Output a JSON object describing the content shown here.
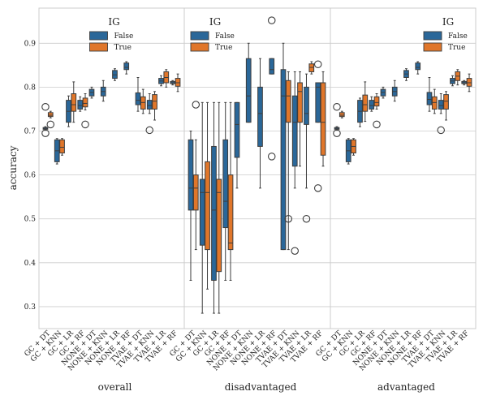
{
  "chart_data": {
    "type": "box",
    "ylabel": "accuracy",
    "ylim": [
      0.25,
      0.98
    ],
    "yticks": [
      0.3,
      0.4,
      0.5,
      0.6,
      0.7,
      0.8,
      0.9
    ],
    "grid": true,
    "categories": [
      "GC + DT",
      "GC + KNN",
      "GC + LR",
      "GC + RF",
      "NONE + DT",
      "NONE + KNN",
      "NONE + LR",
      "NONE + RF",
      "TVAE + DT",
      "TVAE + KNN",
      "TVAE + LR",
      "TVAE + RF"
    ],
    "legend": {
      "title": "IG",
      "entries": [
        {
          "label": "False",
          "color": "#2a6799"
        },
        {
          "label": "True",
          "color": "#e0762a"
        }
      ]
    },
    "panels": [
      {
        "label": "overall",
        "legend_position": "top-center",
        "boxes": [
          {
            "cat": 0,
            "hue": "False",
            "q1": 0.704,
            "med": 0.706,
            "q3": 0.708,
            "wlo": 0.702,
            "whi": 0.71,
            "out": [
              0.755,
              0.695
            ]
          },
          {
            "cat": 0,
            "hue": "True",
            "q1": 0.733,
            "med": 0.736,
            "q3": 0.742,
            "wlo": 0.73,
            "whi": 0.745,
            "out": [
              0.715
            ]
          },
          {
            "cat": 1,
            "hue": "False",
            "q1": 0.63,
            "med": 0.655,
            "q3": 0.68,
            "wlo": 0.625,
            "whi": 0.683,
            "out": []
          },
          {
            "cat": 1,
            "hue": "True",
            "q1": 0.65,
            "med": 0.663,
            "q3": 0.68,
            "wlo": 0.645,
            "whi": 0.683,
            "out": []
          },
          {
            "cat": 2,
            "hue": "False",
            "q1": 0.72,
            "med": 0.745,
            "q3": 0.77,
            "wlo": 0.71,
            "whi": 0.78,
            "out": []
          },
          {
            "cat": 2,
            "hue": "True",
            "q1": 0.745,
            "med": 0.76,
            "q3": 0.785,
            "wlo": 0.72,
            "whi": 0.812,
            "out": []
          },
          {
            "cat": 3,
            "hue": "False",
            "q1": 0.75,
            "med": 0.758,
            "q3": 0.77,
            "wlo": 0.745,
            "whi": 0.778,
            "out": []
          },
          {
            "cat": 3,
            "hue": "True",
            "q1": 0.755,
            "med": 0.763,
            "q3": 0.775,
            "wlo": 0.748,
            "whi": 0.785,
            "out": [
              0.715
            ]
          },
          {
            "cat": 4,
            "hue": "False",
            "q1": 0.78,
            "med": 0.788,
            "q3": 0.795,
            "wlo": 0.775,
            "whi": 0.8,
            "out": []
          },
          {
            "cat": 5,
            "hue": "False",
            "q1": 0.78,
            "med": 0.79,
            "q3": 0.8,
            "wlo": 0.768,
            "whi": 0.815,
            "out": []
          },
          {
            "cat": 6,
            "hue": "False",
            "q1": 0.82,
            "med": 0.828,
            "q3": 0.838,
            "wlo": 0.815,
            "whi": 0.842,
            "out": []
          },
          {
            "cat": 7,
            "hue": "False",
            "q1": 0.84,
            "med": 0.845,
            "q3": 0.855,
            "wlo": 0.83,
            "whi": 0.858,
            "out": []
          },
          {
            "cat": 8,
            "hue": "False",
            "q1": 0.76,
            "med": 0.77,
            "q3": 0.787,
            "wlo": 0.745,
            "whi": 0.822,
            "out": []
          },
          {
            "cat": 8,
            "hue": "True",
            "q1": 0.75,
            "med": 0.765,
            "q3": 0.778,
            "wlo": 0.74,
            "whi": 0.795,
            "out": []
          },
          {
            "cat": 9,
            "hue": "False",
            "q1": 0.75,
            "med": 0.758,
            "q3": 0.77,
            "wlo": 0.74,
            "whi": 0.785,
            "out": [
              0.702
            ]
          },
          {
            "cat": 9,
            "hue": "True",
            "q1": 0.75,
            "med": 0.768,
            "q3": 0.783,
            "wlo": 0.725,
            "whi": 0.79,
            "out": []
          },
          {
            "cat": 10,
            "hue": "False",
            "q1": 0.808,
            "med": 0.814,
            "q3": 0.82,
            "wlo": 0.803,
            "whi": 0.826,
            "out": []
          },
          {
            "cat": 10,
            "hue": "True",
            "q1": 0.81,
            "med": 0.822,
            "q3": 0.835,
            "wlo": 0.8,
            "whi": 0.84,
            "out": []
          },
          {
            "cat": 11,
            "hue": "False",
            "q1": 0.808,
            "med": 0.81,
            "q3": 0.813,
            "wlo": 0.805,
            "whi": 0.815,
            "out": []
          },
          {
            "cat": 11,
            "hue": "True",
            "q1": 0.802,
            "med": 0.81,
            "q3": 0.82,
            "wlo": 0.79,
            "whi": 0.83,
            "out": []
          }
        ]
      },
      {
        "label": "disadvantaged",
        "legend_position": "top-left",
        "boxes": [
          {
            "cat": 0,
            "hue": "False",
            "q1": 0.52,
            "med": 0.57,
            "q3": 0.68,
            "wlo": 0.36,
            "whi": 0.7,
            "out": []
          },
          {
            "cat": 0,
            "hue": "True",
            "q1": 0.52,
            "med": 0.57,
            "q3": 0.6,
            "wlo": 0.43,
            "whi": 0.68,
            "out": [
              0.76
            ]
          },
          {
            "cat": 1,
            "hue": "False",
            "q1": 0.44,
            "med": 0.56,
            "q3": 0.59,
            "wlo": 0.285,
            "whi": 0.765,
            "out": []
          },
          {
            "cat": 1,
            "hue": "True",
            "q1": 0.43,
            "med": 0.56,
            "q3": 0.63,
            "wlo": 0.34,
            "whi": 0.765,
            "out": []
          },
          {
            "cat": 2,
            "hue": "False",
            "q1": 0.36,
            "med": 0.52,
            "q3": 0.665,
            "wlo": 0.285,
            "whi": 0.765,
            "out": []
          },
          {
            "cat": 2,
            "hue": "True",
            "q1": 0.38,
            "med": 0.56,
            "q3": 0.59,
            "wlo": 0.285,
            "whi": 0.765,
            "out": []
          },
          {
            "cat": 3,
            "hue": "False",
            "q1": 0.48,
            "med": 0.54,
            "q3": 0.68,
            "wlo": 0.36,
            "whi": 0.765,
            "out": []
          },
          {
            "cat": 3,
            "hue": "True",
            "q1": 0.43,
            "med": 0.445,
            "q3": 0.6,
            "wlo": 0.36,
            "whi": 0.765,
            "out": []
          },
          {
            "cat": 4,
            "hue": "False",
            "q1": 0.64,
            "med": 0.715,
            "q3": 0.765,
            "wlo": 0.57,
            "whi": 0.765,
            "out": []
          },
          {
            "cat": 5,
            "hue": "False",
            "q1": 0.72,
            "med": 0.78,
            "q3": 0.865,
            "wlo": 0.72,
            "whi": 0.9,
            "out": []
          },
          {
            "cat": 6,
            "hue": "False",
            "q1": 0.665,
            "med": 0.74,
            "q3": 0.8,
            "wlo": 0.57,
            "whi": 0.865,
            "out": []
          },
          {
            "cat": 7,
            "hue": "False",
            "q1": 0.83,
            "med": 0.84,
            "q3": 0.865,
            "wlo": 0.83,
            "whi": 0.865,
            "out": [
              0.952,
              0.642
            ]
          },
          {
            "cat": 8,
            "hue": "False",
            "q1": 0.43,
            "med": 0.78,
            "q3": 0.84,
            "wlo": 0.43,
            "whi": 0.9,
            "out": []
          },
          {
            "cat": 8,
            "hue": "True",
            "q1": 0.72,
            "med": 0.78,
            "q3": 0.815,
            "wlo": 0.43,
            "whi": 0.835,
            "out": [
              0.5
            ]
          },
          {
            "cat": 9,
            "hue": "False",
            "q1": 0.62,
            "med": 0.72,
            "q3": 0.78,
            "wlo": 0.57,
            "whi": 0.835,
            "out": [
              0.427
            ]
          },
          {
            "cat": 9,
            "hue": "True",
            "q1": 0.72,
            "med": 0.79,
            "q3": 0.81,
            "wlo": 0.62,
            "whi": 0.835,
            "out": []
          },
          {
            "cat": 10,
            "hue": "False",
            "q1": 0.715,
            "med": 0.74,
            "q3": 0.8,
            "wlo": 0.57,
            "whi": 0.83,
            "out": [
              0.5
            ]
          },
          {
            "cat": 10,
            "hue": "True",
            "q1": 0.835,
            "med": 0.845,
            "q3": 0.853,
            "wlo": 0.83,
            "whi": 0.858,
            "out": []
          },
          {
            "cat": 11,
            "hue": "False",
            "q1": 0.72,
            "med": 0.8,
            "q3": 0.81,
            "wlo": 0.72,
            "whi": 0.81,
            "out": [
              0.852,
              0.57
            ]
          },
          {
            "cat": 11,
            "hue": "True",
            "q1": 0.645,
            "med": 0.72,
            "q3": 0.81,
            "wlo": 0.62,
            "whi": 0.835,
            "out": []
          }
        ]
      },
      {
        "label": "advantaged",
        "legend_position": "top-right",
        "boxes": [
          {
            "cat": 0,
            "hue": "False",
            "q1": 0.704,
            "med": 0.706,
            "q3": 0.708,
            "wlo": 0.702,
            "whi": 0.71,
            "out": [
              0.755,
              0.695
            ]
          },
          {
            "cat": 0,
            "hue": "True",
            "q1": 0.733,
            "med": 0.736,
            "q3": 0.742,
            "wlo": 0.73,
            "whi": 0.745,
            "out": []
          },
          {
            "cat": 1,
            "hue": "False",
            "q1": 0.63,
            "med": 0.655,
            "q3": 0.68,
            "wlo": 0.625,
            "whi": 0.683,
            "out": []
          },
          {
            "cat": 1,
            "hue": "True",
            "q1": 0.65,
            "med": 0.665,
            "q3": 0.68,
            "wlo": 0.645,
            "whi": 0.683,
            "out": []
          },
          {
            "cat": 2,
            "hue": "False",
            "q1": 0.72,
            "med": 0.745,
            "q3": 0.77,
            "wlo": 0.71,
            "whi": 0.775,
            "out": []
          },
          {
            "cat": 2,
            "hue": "True",
            "q1": 0.745,
            "med": 0.76,
            "q3": 0.782,
            "wlo": 0.722,
            "whi": 0.812,
            "out": []
          },
          {
            "cat": 3,
            "hue": "False",
            "q1": 0.75,
            "med": 0.758,
            "q3": 0.77,
            "wlo": 0.745,
            "whi": 0.778,
            "out": []
          },
          {
            "cat": 3,
            "hue": "True",
            "q1": 0.757,
            "med": 0.765,
            "q3": 0.778,
            "wlo": 0.75,
            "whi": 0.785,
            "out": [
              0.715
            ]
          },
          {
            "cat": 4,
            "hue": "False",
            "q1": 0.78,
            "med": 0.788,
            "q3": 0.795,
            "wlo": 0.775,
            "whi": 0.8,
            "out": []
          },
          {
            "cat": 5,
            "hue": "False",
            "q1": 0.78,
            "med": 0.79,
            "q3": 0.8,
            "wlo": 0.768,
            "whi": 0.815,
            "out": []
          },
          {
            "cat": 6,
            "hue": "False",
            "q1": 0.822,
            "med": 0.83,
            "q3": 0.838,
            "wlo": 0.815,
            "whi": 0.842,
            "out": []
          },
          {
            "cat": 7,
            "hue": "False",
            "q1": 0.84,
            "med": 0.845,
            "q3": 0.855,
            "wlo": 0.83,
            "whi": 0.858,
            "out": []
          },
          {
            "cat": 8,
            "hue": "False",
            "q1": 0.76,
            "med": 0.772,
            "q3": 0.788,
            "wlo": 0.745,
            "whi": 0.822,
            "out": []
          },
          {
            "cat": 8,
            "hue": "True",
            "q1": 0.75,
            "med": 0.765,
            "q3": 0.778,
            "wlo": 0.74,
            "whi": 0.795,
            "out": []
          },
          {
            "cat": 9,
            "hue": "False",
            "q1": 0.75,
            "med": 0.758,
            "q3": 0.77,
            "wlo": 0.74,
            "whi": 0.785,
            "out": [
              0.702
            ]
          },
          {
            "cat": 9,
            "hue": "True",
            "q1": 0.75,
            "med": 0.768,
            "q3": 0.783,
            "wlo": 0.725,
            "whi": 0.79,
            "out": []
          },
          {
            "cat": 10,
            "hue": "False",
            "q1": 0.808,
            "med": 0.814,
            "q3": 0.82,
            "wlo": 0.803,
            "whi": 0.826,
            "out": []
          },
          {
            "cat": 10,
            "hue": "True",
            "q1": 0.815,
            "med": 0.825,
            "q3": 0.835,
            "wlo": 0.805,
            "whi": 0.84,
            "out": []
          },
          {
            "cat": 11,
            "hue": "False",
            "q1": 0.808,
            "med": 0.81,
            "q3": 0.813,
            "wlo": 0.805,
            "whi": 0.815,
            "out": []
          },
          {
            "cat": 11,
            "hue": "True",
            "q1": 0.802,
            "med": 0.81,
            "q3": 0.82,
            "wlo": 0.79,
            "whi": 0.83,
            "out": []
          }
        ]
      }
    ]
  }
}
